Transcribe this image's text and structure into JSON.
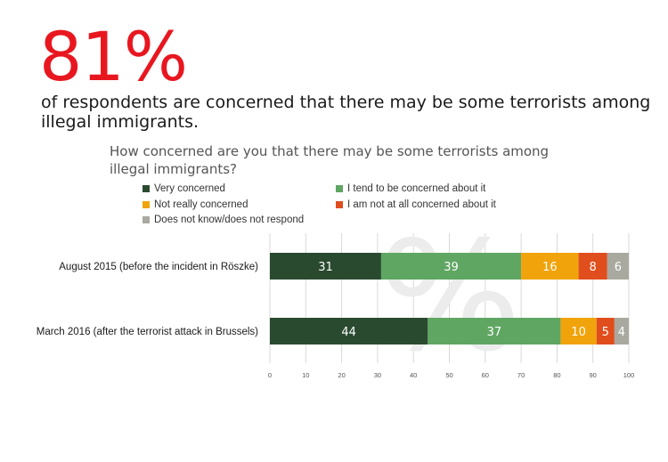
{
  "headline": {
    "percent": "81%",
    "text": "of respondents are concerned that there may be some terrorists among illegal immigrants."
  },
  "question": "How concerned are you that there may be some terrorists among illegal immigrants?",
  "watermark": "%",
  "chart_data": {
    "type": "bar",
    "orientation": "horizontal",
    "stacked": true,
    "categories": [
      "August 2015 (before the incident in Röszke)",
      "March 2016 (after the terrorist attack in Brussels)"
    ],
    "series": [
      {
        "name": "Very concerned",
        "values": [
          31,
          44
        ],
        "color": "#2a4a30"
      },
      {
        "name": "I tend to be concerned about it",
        "values": [
          39,
          37
        ],
        "color": "#5fa663"
      },
      {
        "name": "Not really concerned",
        "values": [
          16,
          10
        ],
        "color": "#f0a30a"
      },
      {
        "name": "I am not at all concerned about it",
        "values": [
          8,
          5
        ],
        "color": "#e04e1e"
      },
      {
        "name": "Does not know/does not respond",
        "values": [
          6,
          4
        ],
        "color": "#a9a9a0"
      }
    ],
    "xlim": [
      0,
      100
    ],
    "xticks": [
      0,
      10,
      20,
      30,
      40,
      50,
      60,
      70,
      80,
      90,
      100
    ],
    "grid": true,
    "legend_position": "top"
  }
}
